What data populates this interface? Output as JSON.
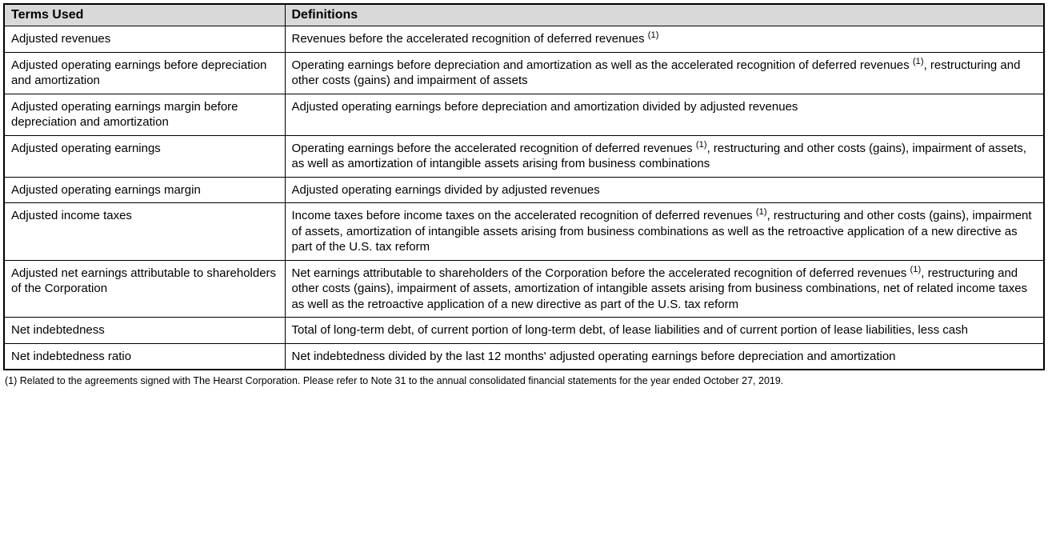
{
  "table": {
    "headers": {
      "terms": "Terms Used",
      "definitions": "Definitions"
    },
    "rows": [
      {
        "term": "Adjusted revenues",
        "definition_parts": [
          "Revenues before the accelerated recognition of deferred revenues ",
          "(1)"
        ]
      },
      {
        "term": "Adjusted operating earnings before depreciation and amortization",
        "definition_parts": [
          "Operating earnings before depreciation and amortization as well as the accelerated recognition of deferred revenues ",
          "(1)",
          ", restructuring and other costs (gains) and impairment of assets"
        ]
      },
      {
        "term": "Adjusted operating earnings margin before depreciation and amortization",
        "definition_parts": [
          "Adjusted operating earnings before depreciation and amortization divided by adjusted revenues"
        ]
      },
      {
        "term": "Adjusted operating earnings",
        "definition_parts": [
          "Operating earnings before the accelerated recognition of deferred revenues ",
          "(1)",
          ", restructuring and other costs (gains), impairment of assets, as well as amortization of intangible assets arising from business combinations"
        ]
      },
      {
        "term": "Adjusted operating earnings margin",
        "definition_parts": [
          "Adjusted operating earnings divided by adjusted revenues"
        ]
      },
      {
        "term": "Adjusted income taxes",
        "definition_parts": [
          "Income taxes before income taxes on the accelerated recognition of deferred revenues ",
          "(1)",
          ", restructuring and other costs (gains), impairment of assets, amortization of intangible assets arising from business combinations as well as the retroactive application of a new directive as part of the U.S. tax reform"
        ]
      },
      {
        "term": "Adjusted net earnings attributable to shareholders of the Corporation",
        "definition_parts": [
          "Net earnings attributable to shareholders of the Corporation before the accelerated recognition of deferred revenues ",
          "(1)",
          ", restructuring and other costs (gains), impairment of assets, amortization of intangible assets arising from business combinations, net of related income taxes as well as the retroactive application of a new directive as part of the U.S. tax reform"
        ]
      },
      {
        "term": "Net indebtedness",
        "definition_parts": [
          "Total of long-term debt, of current portion of long-term debt, of lease liabilities and of current portion of lease liabilities, less cash"
        ]
      },
      {
        "term": "Net indebtedness ratio",
        "definition_parts": [
          "Net indebtedness divided by the last 12 months' adjusted operating earnings before depreciation and amortization"
        ]
      }
    ]
  },
  "footnote": "(1) Related to the agreements signed with The Hearst Corporation. Please refer to Note 31 to the annual consolidated financial statements for the year ended October 27, 2019.",
  "styling": {
    "header_bg": "#d9d9d9",
    "border_color": "#000000",
    "font_family": "Arial",
    "header_fontsize": 16,
    "cell_fontsize": 15,
    "footnote_fontsize": 12.5,
    "col_terms_width_pct": 27,
    "col_defs_width_pct": 73,
    "background_color": "#ffffff"
  }
}
